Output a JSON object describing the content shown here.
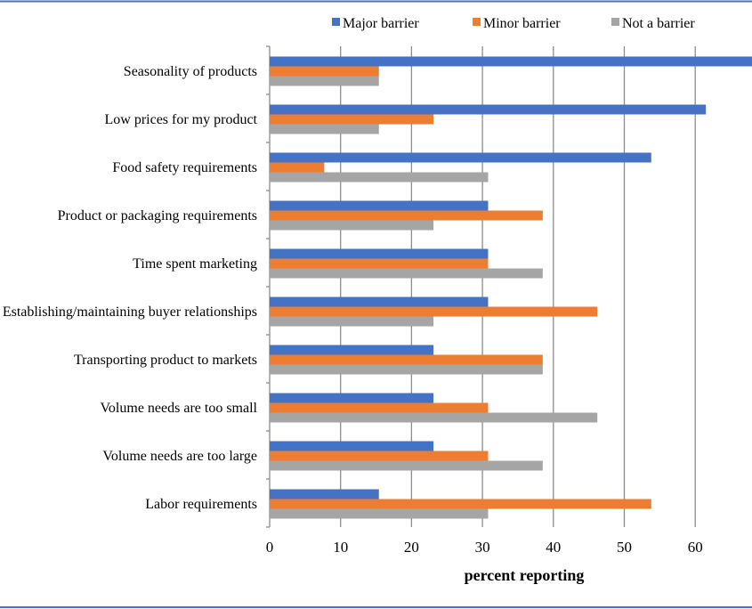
{
  "chart_data": {
    "type": "bar",
    "orientation": "horizontal",
    "categories": [
      "Seasonality of products",
      "Low prices for my product",
      "Food safety requirements",
      "Product or packaging requirements",
      "Time spent marketing",
      "Establishing/maintaining buyer relationships",
      "Transporting product to markets",
      "Volume needs are too small",
      "Volume needs are too large",
      "Labor requirements"
    ],
    "series": [
      {
        "name": "Major barrier",
        "color": "#4472C4",
        "values": [
          69.2,
          61.5,
          53.8,
          30.8,
          30.8,
          30.8,
          23.1,
          23.1,
          23.1,
          15.4
        ]
      },
      {
        "name": "Minor barrier",
        "color": "#ED7D31",
        "values": [
          15.4,
          23.1,
          7.7,
          38.5,
          30.8,
          46.2,
          38.5,
          30.8,
          30.8,
          53.8
        ]
      },
      {
        "name": "Not a barrier",
        "color": "#A5A5A5",
        "values": [
          15.4,
          15.4,
          30.8,
          23.1,
          38.5,
          23.1,
          38.5,
          46.2,
          38.5,
          30.8
        ]
      }
    ],
    "xlabel": "percent reporting",
    "ylabel": "",
    "title": "",
    "xticks": [
      "0",
      "10",
      "20",
      "30",
      "40",
      "50",
      "60"
    ],
    "xlim": [
      0,
      67.8
    ],
    "grid": "vertical",
    "legend": "top"
  }
}
